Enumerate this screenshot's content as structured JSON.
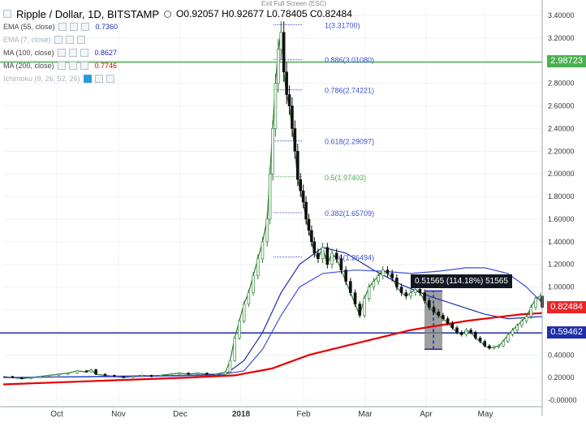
{
  "header": {
    "symbol": "Ripple / Dollar, 1D, BITSTAMP",
    "ohlc": "O0.92057  H0.92677  L0.78405  C0.82484"
  },
  "exit_fullscreen": "Exit Full Screen (ESC)",
  "indicators": [
    {
      "name": "EMA (55, close)",
      "value": "0.7360",
      "color": "#1f2fa8",
      "faded": false
    },
    {
      "name": "EMA (7, close)",
      "value": "",
      "color": "#aab4bf",
      "faded": true
    },
    {
      "name": "MA (100, close)",
      "value": "0.8627",
      "color": "#1f2fa8",
      "faded": false
    },
    {
      "name": "MA (200, close)",
      "value": "0.7746",
      "color": "#e60000",
      "faded": false
    },
    {
      "name": "Ichimoku (9, 26, 52, 26)",
      "value": "",
      "color": "#aab4bf",
      "faded": true
    }
  ],
  "price_tags": {
    "green_line": {
      "label": "2.98723",
      "color": "#4caf50"
    },
    "close": {
      "label": "0.82484",
      "color": "#e8262a"
    },
    "blue_line": {
      "label": "0.59462",
      "color": "#1f2fa8"
    }
  },
  "measure": {
    "label": "0.51565 (114.18%) 51565"
  },
  "chart_data": {
    "type": "candlestick",
    "y_axis": {
      "range": [
        -0.05,
        3.45
      ],
      "ticks": [
        "3.40000",
        "3.20000",
        "3.00000",
        "2.80000",
        "2.60000",
        "2.40000",
        "2.20000",
        "2.00000",
        "1.80000",
        "1.60000",
        "1.40000",
        "1.20000",
        "1.00000",
        "0.80000",
        "0.60000",
        "0.40000",
        "0.20000",
        "-0.00000"
      ]
    },
    "x_axis": {
      "ticks": [
        "Oct",
        "Nov",
        "Dec",
        "2018",
        "Feb",
        "Mar",
        "Apr",
        "May"
      ]
    },
    "fibonacci": [
      {
        "label": "1(3.31700)",
        "value": 3.317,
        "color": "#3f51d6"
      },
      {
        "label": "0.886(3.01080)",
        "value": 3.0108,
        "color": "#3f51d6"
      },
      {
        "label": "0.786(2.74221)",
        "value": 2.74221,
        "color": "#3f51d6"
      },
      {
        "label": "0.618(2.29097)",
        "value": 2.29097,
        "color": "#3f51d6"
      },
      {
        "label": "0.5(1.97403)",
        "value": 1.97403,
        "color": "#4caf50"
      },
      {
        "label": "0.382(1.65709)",
        "value": 1.65709,
        "color": "#3f51d6"
      },
      {
        "label": "0.236(1.26494)",
        "value": 1.26494,
        "color": "#3f51d6"
      }
    ],
    "horizontal_lines": [
      {
        "value": 2.98723,
        "color": "#4caf50"
      },
      {
        "value": 0.59462,
        "color": "#1f2fa8"
      }
    ],
    "measure_range": {
      "from": 0.45,
      "to": 0.966,
      "change": 0.51565,
      "percent": 114.18
    },
    "series": [
      {
        "name": "Price",
        "points": [
          [
            0,
            0.21
          ],
          [
            10,
            0.2
          ],
          [
            20,
            0.19
          ],
          [
            30,
            0.2
          ],
          [
            40,
            0.21
          ],
          [
            50,
            0.22
          ],
          [
            60,
            0.23
          ],
          [
            70,
            0.24
          ],
          [
            80,
            0.26
          ],
          [
            90,
            0.25
          ],
          [
            95,
            0.27
          ],
          [
            100,
            0.23
          ],
          [
            110,
            0.22
          ],
          [
            120,
            0.21
          ],
          [
            130,
            0.2
          ],
          [
            140,
            0.21
          ],
          [
            150,
            0.22
          ],
          [
            160,
            0.21
          ],
          [
            170,
            0.22
          ],
          [
            180,
            0.23
          ],
          [
            190,
            0.24
          ],
          [
            200,
            0.23
          ],
          [
            210,
            0.24
          ],
          [
            220,
            0.23
          ],
          [
            230,
            0.23
          ],
          [
            240,
            0.25
          ],
          [
            245,
            0.35
          ],
          [
            250,
            0.55
          ],
          [
            255,
            0.7
          ],
          [
            260,
            0.85
          ],
          [
            265,
            0.95
          ],
          [
            270,
            1.1
          ],
          [
            275,
            1.25
          ],
          [
            280,
            1.4
          ],
          [
            285,
            1.6
          ],
          [
            288,
            2.0
          ],
          [
            291,
            2.4
          ],
          [
            294,
            2.8
          ],
          [
            297,
            3.1
          ],
          [
            300,
            3.25
          ],
          [
            303,
            2.9
          ],
          [
            306,
            2.7
          ],
          [
            309,
            2.6
          ],
          [
            312,
            2.4
          ],
          [
            315,
            2.2
          ],
          [
            318,
            1.95
          ],
          [
            321,
            1.85
          ],
          [
            324,
            1.75
          ],
          [
            327,
            1.6
          ],
          [
            330,
            1.5
          ],
          [
            333,
            1.4
          ],
          [
            336,
            1.3
          ],
          [
            340,
            1.25
          ],
          [
            345,
            1.35
          ],
          [
            350,
            1.2
          ],
          [
            355,
            1.3
          ],
          [
            360,
            1.25
          ],
          [
            365,
            1.15
          ],
          [
            370,
            1.05
          ],
          [
            375,
            0.95
          ],
          [
            380,
            0.85
          ],
          [
            385,
            0.75
          ],
          [
            390,
            0.9
          ],
          [
            395,
            1.0
          ],
          [
            400,
            1.05
          ],
          [
            405,
            1.1
          ],
          [
            410,
            1.15
          ],
          [
            415,
            1.12
          ],
          [
            420,
            1.08
          ],
          [
            425,
            1.0
          ],
          [
            430,
            0.95
          ],
          [
            435,
            0.92
          ],
          [
            440,
            0.95
          ],
          [
            445,
            0.98
          ],
          [
            450,
            0.95
          ],
          [
            455,
            0.88
          ],
          [
            460,
            0.82
          ],
          [
            465,
            0.78
          ],
          [
            470,
            0.75
          ],
          [
            475,
            0.72
          ],
          [
            480,
            0.68
          ],
          [
            485,
            0.64
          ],
          [
            490,
            0.6
          ],
          [
            495,
            0.58
          ],
          [
            500,
            0.62
          ],
          [
            505,
            0.6
          ],
          [
            510,
            0.55
          ],
          [
            515,
            0.52
          ],
          [
            520,
            0.48
          ],
          [
            525,
            0.46
          ],
          [
            530,
            0.47
          ],
          [
            535,
            0.48
          ],
          [
            540,
            0.52
          ],
          [
            545,
            0.58
          ],
          [
            550,
            0.62
          ],
          [
            555,
            0.66
          ],
          [
            560,
            0.7
          ],
          [
            565,
            0.74
          ],
          [
            570,
            0.82
          ],
          [
            575,
            0.9
          ],
          [
            580,
            0.92
          ],
          [
            582,
            0.82
          ]
        ]
      },
      {
        "name": "EMA (55, close)",
        "points": [
          [
            0,
            0.2
          ],
          [
            100,
            0.21
          ],
          [
            200,
            0.22
          ],
          [
            240,
            0.23
          ],
          [
            260,
            0.35
          ],
          [
            280,
            0.6
          ],
          [
            300,
            0.95
          ],
          [
            320,
            1.2
          ],
          [
            345,
            1.35
          ],
          [
            370,
            1.3
          ],
          [
            400,
            1.15
          ],
          [
            430,
            1.02
          ],
          [
            460,
            0.92
          ],
          [
            490,
            0.84
          ],
          [
            520,
            0.76
          ],
          [
            545,
            0.72
          ],
          [
            565,
            0.73
          ],
          [
            582,
            0.74
          ]
        ]
      },
      {
        "name": "MA (100, close)",
        "points": [
          [
            0,
            0.2
          ],
          [
            150,
            0.21
          ],
          [
            230,
            0.22
          ],
          [
            260,
            0.26
          ],
          [
            280,
            0.45
          ],
          [
            300,
            0.75
          ],
          [
            320,
            1.0
          ],
          [
            345,
            1.12
          ],
          [
            380,
            1.15
          ],
          [
            410,
            1.14
          ],
          [
            440,
            1.12
          ],
          [
            470,
            1.14
          ],
          [
            500,
            1.17
          ],
          [
            520,
            1.17
          ],
          [
            545,
            1.12
          ],
          [
            565,
            1.0
          ],
          [
            582,
            0.86
          ]
        ]
      },
      {
        "name": "MA (200, close)",
        "points": [
          [
            0,
            0.14
          ],
          [
            100,
            0.17
          ],
          [
            200,
            0.2
          ],
          [
            250,
            0.22
          ],
          [
            290,
            0.28
          ],
          [
            330,
            0.4
          ],
          [
            370,
            0.48
          ],
          [
            410,
            0.56
          ],
          [
            440,
            0.62
          ],
          [
            470,
            0.66
          ],
          [
            500,
            0.7
          ],
          [
            530,
            0.73
          ],
          [
            560,
            0.76
          ],
          [
            582,
            0.77
          ]
        ]
      }
    ]
  }
}
